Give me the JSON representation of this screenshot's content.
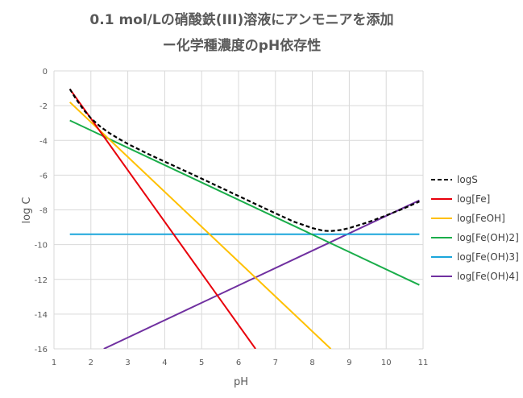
{
  "chart_data": {
    "type": "line",
    "title_lines": [
      "0.1 mol/Lの硝酸鉄(III)溶液にアンモニアを添加",
      "ー化学種濃度のpH依存性"
    ],
    "xlabel": "pH",
    "ylabel": "log C",
    "xlim": [
      1,
      11
    ],
    "ylim": [
      -16,
      0
    ],
    "xticks": [
      "1",
      "2",
      "3",
      "4",
      "5",
      "6",
      "7",
      "8",
      "9",
      "10",
      "11"
    ],
    "yticks": [
      "0",
      "-2",
      "-4",
      "-6",
      "-8",
      "-10",
      "-12",
      "-14",
      "-16"
    ],
    "grid": true,
    "legend_position": "right",
    "series": [
      {
        "name": "logS",
        "color": "#000000",
        "dash": true,
        "points": [
          [
            1.43,
            -1.05
          ],
          [
            1.6,
            -1.63
          ],
          [
            1.8,
            -2.23
          ],
          [
            2.0,
            -2.72
          ],
          [
            2.25,
            -3.2
          ],
          [
            2.5,
            -3.58
          ],
          [
            2.75,
            -3.9
          ],
          [
            3.0,
            -4.2
          ],
          [
            3.5,
            -4.73
          ],
          [
            4.0,
            -5.22
          ],
          [
            4.5,
            -5.71
          ],
          [
            5.0,
            -6.2
          ],
          [
            6.0,
            -7.2
          ],
          [
            7.0,
            -8.2
          ],
          [
            7.5,
            -8.68
          ],
          [
            8.0,
            -9.05
          ],
          [
            8.3,
            -9.2
          ],
          [
            8.5,
            -9.22
          ],
          [
            8.8,
            -9.15
          ],
          [
            9.0,
            -9.05
          ],
          [
            9.5,
            -8.72
          ],
          [
            10.0,
            -8.32
          ],
          [
            10.5,
            -7.9
          ],
          [
            10.9,
            -7.52
          ]
        ]
      },
      {
        "name": "log[Fe]",
        "color": "#e8000b",
        "dash": false,
        "points": [
          [
            1.43,
            -1.05
          ],
          [
            6.46,
            -16.0
          ]
        ]
      },
      {
        "name": "log[FeOH]",
        "color": "#ffc000",
        "dash": false,
        "points": [
          [
            1.43,
            -1.8
          ],
          [
            8.5,
            -16.0
          ]
        ]
      },
      {
        "name": "log[Fe(OH)2]",
        "color": "#1aad4a",
        "dash": false,
        "points": [
          [
            1.43,
            -2.85
          ],
          [
            10.9,
            -12.32
          ]
        ]
      },
      {
        "name": "log[Fe(OH)3]",
        "color": "#1ba6db",
        "dash": false,
        "points": [
          [
            1.43,
            -9.4
          ],
          [
            10.9,
            -9.4
          ]
        ]
      },
      {
        "name": "log[Fe(OH)4]",
        "color": "#7030a0",
        "dash": false,
        "points": [
          [
            2.35,
            -16.0
          ],
          [
            10.9,
            -7.45
          ]
        ]
      }
    ]
  }
}
